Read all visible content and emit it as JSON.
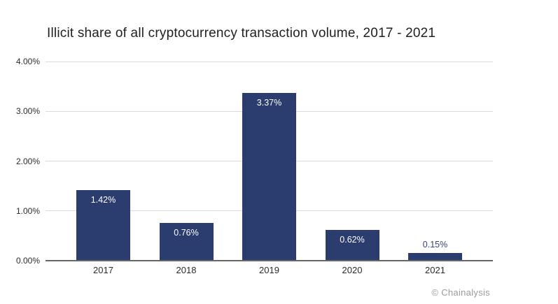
{
  "chart": {
    "title": "Illicit share of all cryptocurrency transaction volume, 2017 - 2021"
  },
  "footer": {
    "credit": "© Chainalysis"
  },
  "chart_data": {
    "type": "bar",
    "title": "Illicit share of all cryptocurrency transaction volume, 2017 - 2021",
    "categories": [
      "2017",
      "2018",
      "2019",
      "2020",
      "2021"
    ],
    "values": [
      1.42,
      0.76,
      3.37,
      0.62,
      0.15
    ],
    "bar_labels": [
      "1.42%",
      "0.76%",
      "3.37%",
      "0.62%",
      "0.15%"
    ],
    "xlabel": "",
    "ylabel": "",
    "ylim": [
      0,
      4
    ],
    "yticks": [
      "0.00%",
      "1.00%",
      "2.00%",
      "3.00%",
      "4.00%"
    ],
    "grid": true,
    "legend": false,
    "colors": {
      "bar": "#2b3c6e",
      "label_inside": "#ffffff",
      "label_outside": "#34437c",
      "gridline": "#dadada",
      "axis_line": "#666666",
      "tick_label": "#2b2b2b",
      "title": "#1f1f1f",
      "credit": "#9b9b9b",
      "background": "#ffffff"
    }
  }
}
